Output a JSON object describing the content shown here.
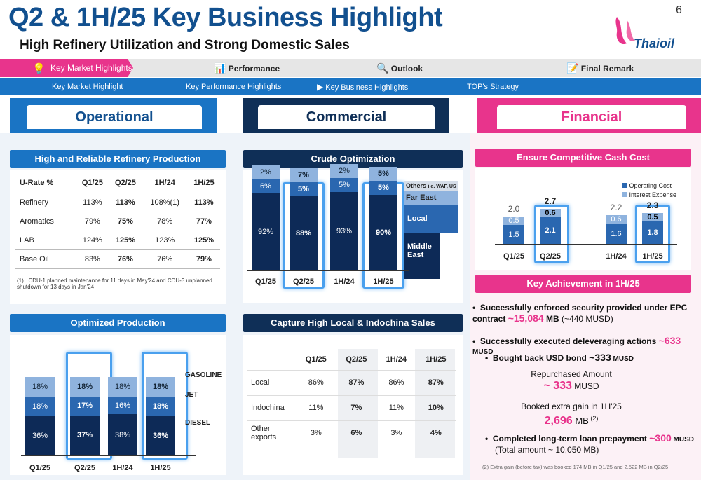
{
  "title": "Q2 & 1H/25  Key Business Highlight",
  "subtitle": "High Refinery Utilization and Strong Domestic Sales",
  "page_number": "6",
  "logo_text": "Thaioil",
  "nav_main": [
    "Key Market Highlights",
    "Performance",
    "Outlook",
    "Final Remark"
  ],
  "nav_sub": [
    "Key Market Highlight",
    "Key Performance Highlights",
    "Key Business Highlights",
    "TOP's Strategy"
  ],
  "sections": {
    "operational": "Operational",
    "commercial": "Commercial",
    "financial": "Financial"
  },
  "refinery": {
    "heading": "High and Reliable Refinery Production",
    "columns": [
      "U-Rate %",
      "Q1/25",
      "Q2/25",
      "1H/24",
      "1H/25"
    ],
    "rows": [
      [
        "Refinery",
        "113%",
        "113%",
        "108%(1)",
        "113%"
      ],
      [
        "Aromatics",
        "79%",
        "75%",
        "78%",
        "77%"
      ],
      [
        "LAB",
        "124%",
        "125%",
        "123%",
        "125%"
      ],
      [
        "Base Oil",
        "83%",
        "76%",
        "76%",
        "79%"
      ]
    ],
    "footnote_num": "(1)",
    "footnote": "CDU-1 planned maintenance for 11 days in May'24 and CDU-3 unplanned shutdown for 13 days in Jan'24"
  },
  "optimized": {
    "heading": "Optimized Production",
    "categories": [
      "Q1/25",
      "Q2/25",
      "1H/24",
      "1H/25"
    ],
    "series": [
      {
        "name": "DIESEL",
        "values": [
          "36%",
          "37%",
          "38%",
          "36%"
        ]
      },
      {
        "name": "JET",
        "values": [
          "18%",
          "17%",
          "16%",
          "18%"
        ]
      },
      {
        "name": "GASOLINE",
        "values": [
          "18%",
          "18%",
          "18%",
          "18%"
        ]
      }
    ],
    "colors": [
      "#0d2a57",
      "#2a67b0",
      "#8fb3de"
    ]
  },
  "crude": {
    "heading": "Crude Optimization",
    "categories": [
      "Q1/25",
      "Q2/25",
      "1H/24",
      "1H/25"
    ],
    "series": [
      {
        "name": "Middle East",
        "values": [
          "92%",
          "88%",
          "93%",
          "90%"
        ]
      },
      {
        "name": "Local",
        "values": [
          "6%",
          "5%",
          "5%",
          "5%"
        ]
      },
      {
        "name": "Far East",
        "values": [
          "2%",
          "7%",
          "2%",
          "5%"
        ]
      }
    ],
    "legend": {
      "others": "Others",
      "others_note": "i.e. WAF, US",
      "far_east": "Far East",
      "local": "Local",
      "middle_east": "Middle East"
    }
  },
  "sales": {
    "heading": "Capture High Local & Indochina Sales",
    "columns": [
      "",
      "Q1/25",
      "Q2/25",
      "1H/24",
      "1H/25"
    ],
    "rows": [
      [
        "Local",
        "86%",
        "87%",
        "86%",
        "87%"
      ],
      [
        "Indochina",
        "11%",
        "7%",
        "11%",
        "10%"
      ],
      [
        "Other exports",
        "3%",
        "6%",
        "3%",
        "4%"
      ]
    ]
  },
  "cash_cost": {
    "heading": "Ensure Competitive Cash Cost",
    "legend": [
      "Operating Cost",
      "Interest Expense"
    ],
    "categories": [
      "Q1/25",
      "Q2/25",
      "1H/24",
      "1H/25"
    ],
    "totals": [
      "2.0",
      "2.7",
      "2.2",
      "2.3"
    ],
    "operating": [
      "1.5",
      "2.1",
      "1.6",
      "1.8"
    ],
    "interest": [
      "0.5",
      "0.6",
      "0.6",
      "0.5"
    ]
  },
  "achievement": {
    "heading": "Key Achievement in 1H/25",
    "b1_a": "Successfully enforced security provided under EPC contract ",
    "b1_val": "~15,084",
    "b1_unit": " MB",
    "b1_note": " (~440 MUSD)",
    "b2_a": "Successfully executed deleveraging actions ",
    "b2_val": "~633",
    "b2_unit": " MUSD",
    "b3_a": "Bought back USD bond ",
    "b3_val": "~333",
    "b3_unit": " MUSD",
    "repurchased_label": "Repurchased Amount",
    "repurchased_val": "~ 333",
    "repurchased_unit": " MUSD",
    "gain_label": "Booked extra gain in 1H'25",
    "gain_val": "2,696",
    "gain_unit": " MB",
    "gain_note": " (2)",
    "b4_a": "Completed long-term loan prepayment ",
    "b4_val": "~300",
    "b4_unit": " MUSD",
    "b4_note": "(Total amount ~ 10,050 MB)",
    "footnote": "(2) Extra gain (before tax) was booked 174 MB in Q1/25 and 2,522 MB in Q2/25"
  }
}
